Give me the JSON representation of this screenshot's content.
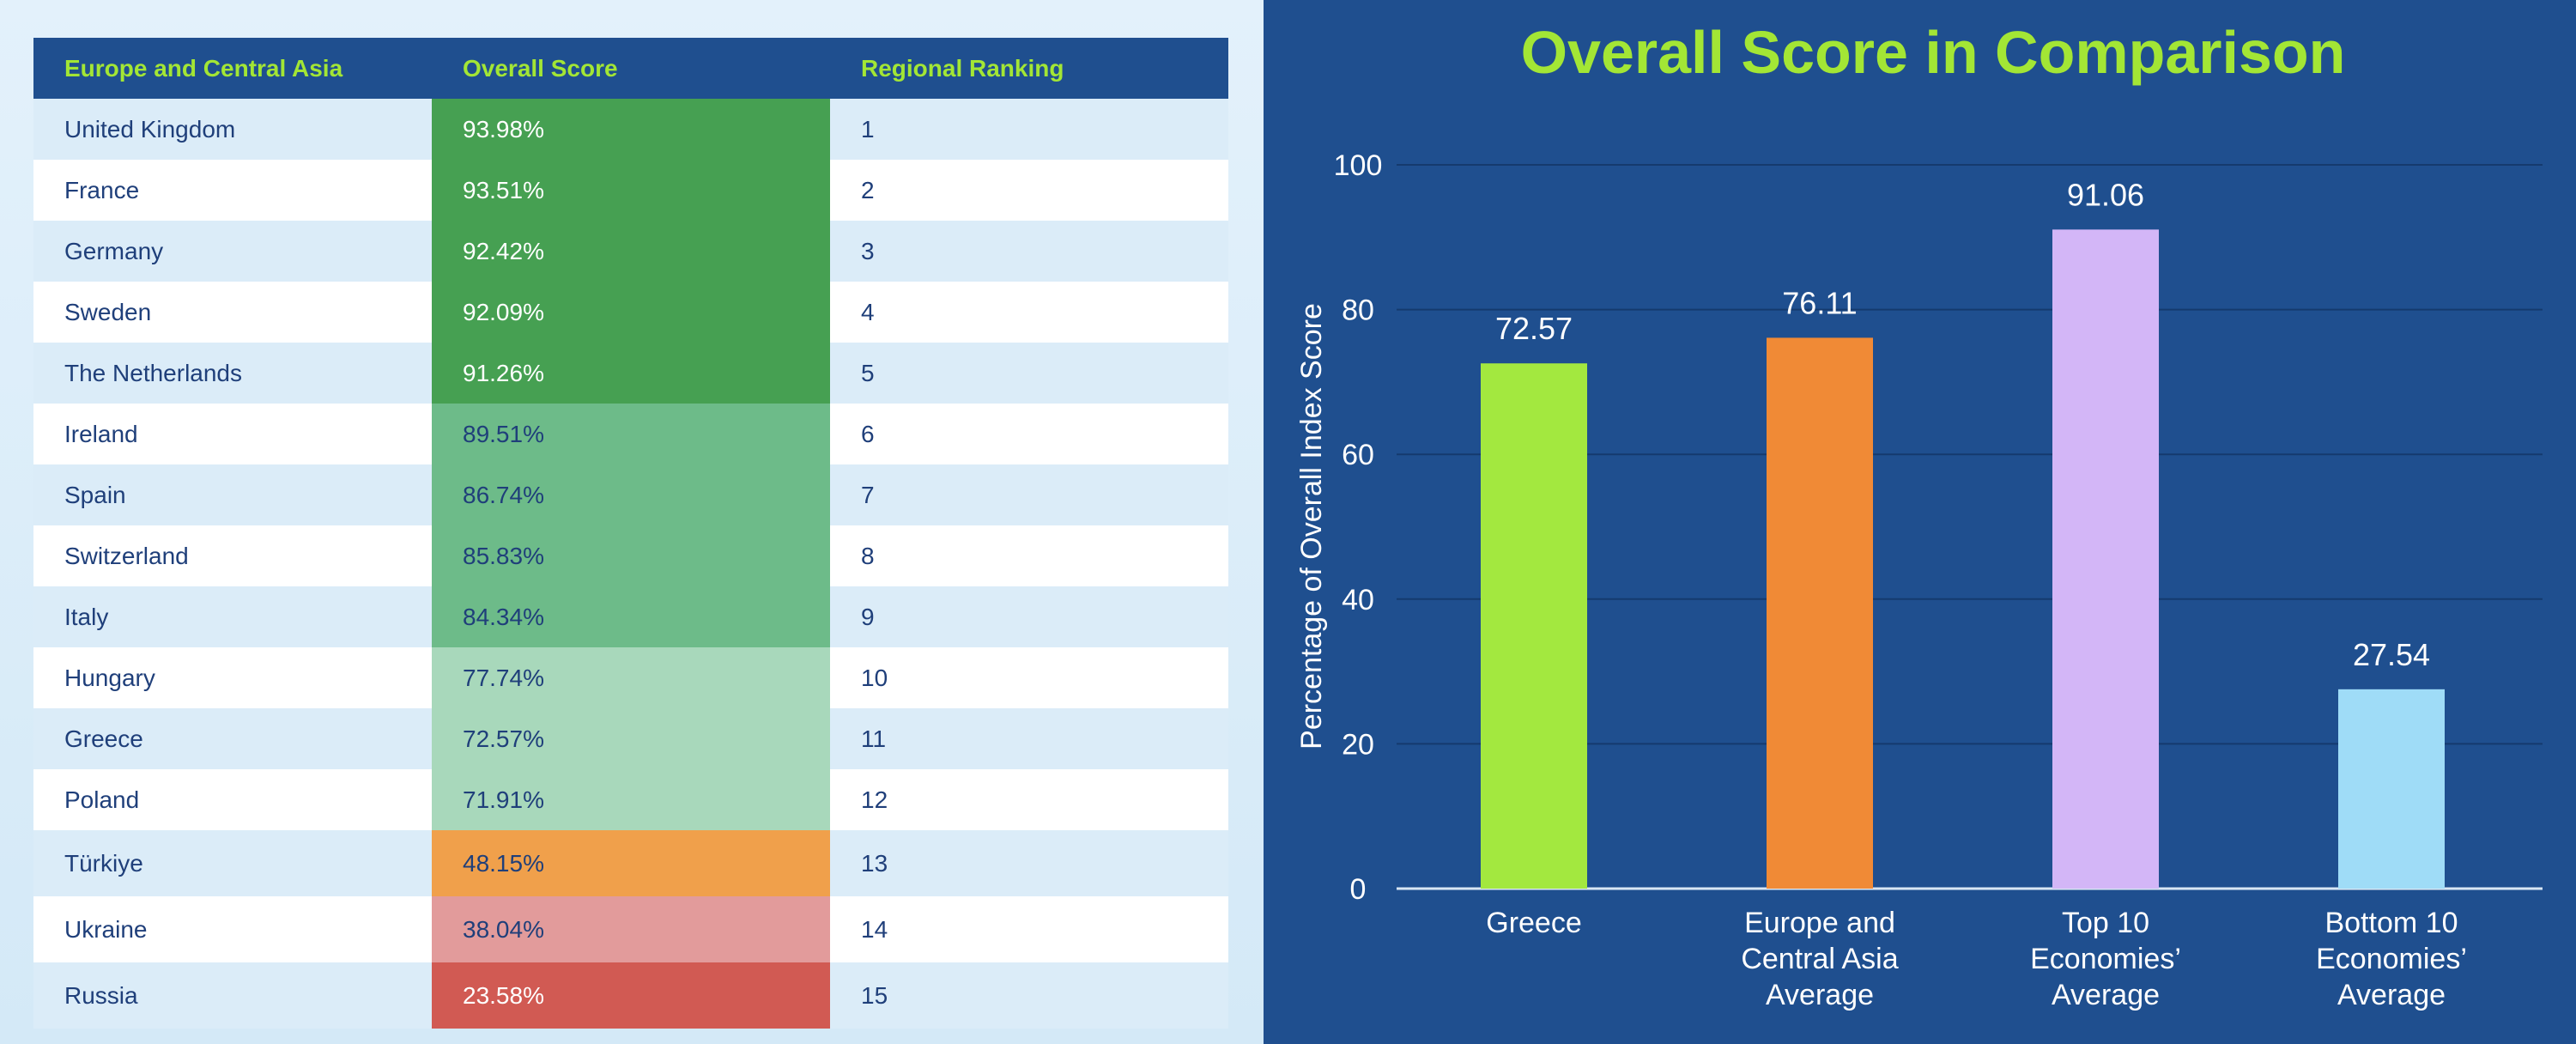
{
  "table": {
    "headers": [
      "Europe and Central Asia",
      "Overall Score",
      "Regional Ranking"
    ],
    "rows": [
      {
        "country": "United Kingdom",
        "score": "93.98%",
        "rank": "1"
      },
      {
        "country": "France",
        "score": "93.51%",
        "rank": "2"
      },
      {
        "country": "Germany",
        "score": "92.42%",
        "rank": "3"
      },
      {
        "country": "Sweden",
        "score": "92.09%",
        "rank": "4"
      },
      {
        "country": "The Netherlands",
        "score": "91.26%",
        "rank": "5"
      },
      {
        "country": "Ireland",
        "score": "89.51%",
        "rank": "6"
      },
      {
        "country": "Spain",
        "score": "86.74%",
        "rank": "7"
      },
      {
        "country": "Switzerland",
        "score": "85.83%",
        "rank": "8"
      },
      {
        "country": "Italy",
        "score": "84.34%",
        "rank": "9"
      },
      {
        "country": "Hungary",
        "score": "77.74%",
        "rank": "10"
      },
      {
        "country": "Greece",
        "score": "72.57%",
        "rank": "11"
      },
      {
        "country": "Poland",
        "score": "71.91%",
        "rank": "12"
      },
      {
        "country": "Türkiye",
        "score": "48.15%",
        "rank": "13"
      },
      {
        "country": "Ukraine",
        "score": "38.04%",
        "rank": "14"
      },
      {
        "country": "Russia",
        "score": "23.58%",
        "rank": "15"
      }
    ],
    "score_band_colors": {
      "top": "#46a052",
      "high": "#6dbb89",
      "mid": "#a8d8bb",
      "orange": "#f0a04b",
      "pink": "#e29b9b",
      "red": "#d15a53"
    }
  },
  "chart_data": {
    "type": "bar",
    "title": "Overall Score in Comparison",
    "ylabel": "Percentage of Overall Index Score",
    "xlabel": "",
    "ylim": [
      0,
      100
    ],
    "yticks": [
      0,
      20,
      40,
      60,
      80,
      100
    ],
    "grid": true,
    "categories": [
      [
        "Greece"
      ],
      [
        "Europe and",
        "Central Asia",
        "Average"
      ],
      [
        "Top 10",
        "Economies’",
        "Average"
      ],
      [
        "Bottom 10",
        "Economies’",
        "Average"
      ]
    ],
    "values": [
      72.57,
      76.11,
      91.06,
      27.54
    ],
    "value_labels": [
      "72.57",
      "76.11",
      "91.06",
      "27.54"
    ],
    "colors": [
      "#a3e83f",
      "#f08a36",
      "#d3b6f7",
      "#9fdcf7"
    ],
    "title_color": "#a3e635",
    "background": "#1f4f8f"
  }
}
